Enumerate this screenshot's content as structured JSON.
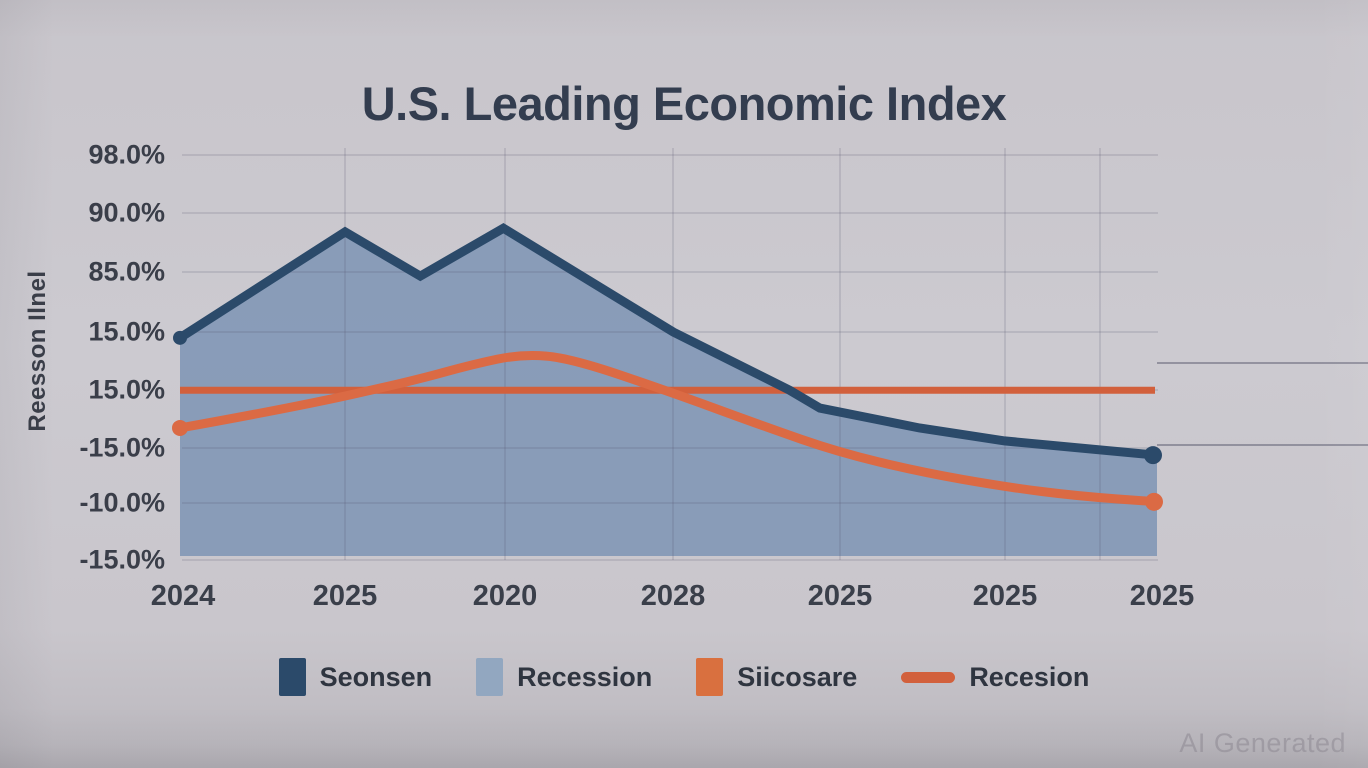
{
  "title": "U.S. Leading Economic Index",
  "watermark": "AI Generated",
  "y_axis": {
    "label": "Reesson Ilnel",
    "ticks": [
      "98.0%",
      "90.0%",
      "85.0%",
      "15.0%",
      "15.0%",
      "-15.0%",
      "-10.0%",
      "-15.0%"
    ]
  },
  "x_axis": {
    "ticks": [
      "2024",
      "2025",
      "2020",
      "2028",
      "2025",
      "2025",
      "2025"
    ]
  },
  "legend": [
    {
      "label": "Seonsen",
      "marker": "square",
      "color": "#2b4a6a"
    },
    {
      "label": "Recession",
      "marker": "square",
      "color": "#92a7c0"
    },
    {
      "label": "Siicosare",
      "marker": "square",
      "color": "#d9703f"
    },
    {
      "label": "Recesion",
      "marker": "line",
      "color": "#d2603c"
    }
  ],
  "colors": {
    "background": "#cac7cd",
    "grid": "#5a5a6e",
    "title_text": "#333d4f",
    "tick_text": "#3a3e49",
    "legend_text": "#2f3540",
    "watermark_text": "#a4a0a8",
    "blue_line": "#2b4a6a",
    "area_fill": "#8398b6",
    "orange_curve": "#db6a44",
    "orange_flat_line": "#d2603c"
  },
  "chart_data": {
    "type": "area",
    "title": "U.S. Leading Economic Index",
    "categories": [
      "2024",
      "2025",
      "2020",
      "2028",
      "2025",
      "2025",
      "2025"
    ],
    "y_tick_labels": [
      "98.0%",
      "90.0%",
      "85.0%",
      "15.0%",
      "15.0%",
      "-15.0%",
      "-10.0%",
      "-15.0%"
    ],
    "note": "AI-generated figure; axis tick labels are garbled and non-monotonic. Series points are [x fraction across plot 0-1, value as % of plot height above baseline].",
    "grid": true,
    "legend_position": "bottom",
    "series": [
      {
        "name": "Seonsen",
        "type": "area-line",
        "color": "#2b4a6a",
        "fill": "#8398b6",
        "points": [
          [
            0,
            53
          ],
          [
            0.169,
            79.1
          ],
          [
            0.246,
            68.2
          ],
          [
            0.331,
            80
          ],
          [
            0.505,
            54.4
          ],
          [
            0.624,
            40.1
          ],
          [
            0.655,
            35.7
          ],
          [
            0.757,
            30.8
          ],
          [
            0.844,
            27.6
          ],
          [
            1,
            24.1
          ]
        ]
      },
      {
        "name": "Siicosare",
        "type": "smooth-line",
        "color": "#db6a44",
        "points": [
          [
            0,
            30.8
          ],
          [
            0.12,
            36
          ],
          [
            0.24,
            42.5
          ],
          [
            0.3,
            46.5
          ],
          [
            0.35,
            49
          ],
          [
            0.4,
            48
          ],
          [
            0.505,
            39.4
          ],
          [
            0.6,
            31
          ],
          [
            0.673,
            24.9
          ],
          [
            0.757,
            20
          ],
          [
            0.844,
            16.3
          ],
          [
            0.92,
            14
          ],
          [
            1,
            12.6
          ]
        ]
      },
      {
        "name": "Recesion",
        "type": "hline",
        "color": "#d2603c",
        "value": 40.1
      }
    ]
  }
}
